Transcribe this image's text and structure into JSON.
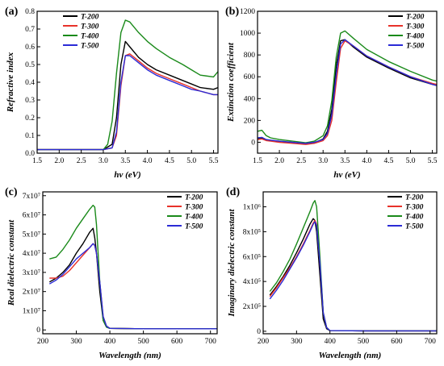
{
  "chart_data": [
    {
      "panel": "(a)",
      "type": "line",
      "xlabel": "hν (eV)",
      "ylabel": "Refractive index",
      "xlim": [
        1.5,
        5.6
      ],
      "ylim": [
        0,
        0.8
      ],
      "xticks": [
        1.5,
        2.0,
        2.5,
        3.0,
        3.5,
        4.0,
        4.5,
        5.0,
        5.5
      ],
      "xtick_labels": [
        "1.5",
        "2.0",
        "2.5",
        "3.0",
        "3.5",
        "4.0",
        "4.5",
        "5.0",
        "5.5"
      ],
      "yticks": [
        0.0,
        0.1,
        0.2,
        0.3,
        0.4,
        0.5,
        0.6,
        0.7,
        0.8
      ],
      "ytick_labels": [
        "0.0",
        "0.1",
        "0.2",
        "0.3",
        "0.4",
        "0.5",
        "0.6",
        "0.7",
        "0.8"
      ],
      "legend_position": "top-left",
      "series": [
        {
          "name": "T-200",
          "color": "#000000",
          "x": [
            1.5,
            2.0,
            2.5,
            3.0,
            3.2,
            3.3,
            3.4,
            3.5,
            3.6,
            3.8,
            4.0,
            4.2,
            4.5,
            4.8,
            5.0,
            5.2,
            5.5,
            5.6
          ],
          "y": [
            0.02,
            0.02,
            0.02,
            0.02,
            0.05,
            0.2,
            0.5,
            0.63,
            0.6,
            0.54,
            0.5,
            0.47,
            0.44,
            0.41,
            0.39,
            0.37,
            0.36,
            0.37
          ]
        },
        {
          "name": "T-300",
          "color": "#e8322a",
          "x": [
            1.5,
            2.0,
            2.5,
            3.0,
            3.2,
            3.3,
            3.4,
            3.5,
            3.6,
            3.8,
            4.0,
            4.2,
            4.5,
            4.8,
            5.0,
            5.2,
            5.5,
            5.6
          ],
          "y": [
            0.02,
            0.02,
            0.02,
            0.02,
            0.03,
            0.1,
            0.38,
            0.55,
            0.56,
            0.52,
            0.48,
            0.45,
            0.42,
            0.39,
            0.37,
            0.35,
            0.33,
            0.33
          ]
        },
        {
          "name": "T-400",
          "color": "#1a8a1a",
          "x": [
            1.5,
            2.0,
            2.5,
            3.0,
            3.1,
            3.2,
            3.3,
            3.4,
            3.5,
            3.6,
            3.8,
            4.0,
            4.2,
            4.5,
            4.8,
            5.0,
            5.2,
            5.5,
            5.6
          ],
          "y": [
            0.02,
            0.02,
            0.02,
            0.02,
            0.05,
            0.18,
            0.45,
            0.68,
            0.75,
            0.74,
            0.68,
            0.63,
            0.59,
            0.54,
            0.5,
            0.47,
            0.44,
            0.43,
            0.46
          ]
        },
        {
          "name": "T-500",
          "color": "#2b2bd6",
          "x": [
            1.5,
            2.0,
            2.5,
            3.0,
            3.2,
            3.3,
            3.4,
            3.5,
            3.6,
            3.8,
            4.0,
            4.2,
            4.5,
            4.8,
            5.0,
            5.2,
            5.5,
            5.6
          ],
          "y": [
            0.02,
            0.02,
            0.02,
            0.02,
            0.03,
            0.12,
            0.4,
            0.55,
            0.55,
            0.51,
            0.47,
            0.44,
            0.41,
            0.38,
            0.36,
            0.35,
            0.33,
            0.33
          ]
        }
      ]
    },
    {
      "panel": "(b)",
      "type": "line",
      "xlabel": "hν (eV)",
      "ylabel": "Extinction coefficient",
      "xlim": [
        1.5,
        5.6
      ],
      "ylim": [
        -100,
        1200
      ],
      "xticks": [
        1.5,
        2.0,
        2.5,
        3.0,
        3.5,
        4.0,
        4.5,
        5.0,
        5.5
      ],
      "xtick_labels": [
        "1.5",
        "2.0",
        "2.5",
        "3.0",
        "3.5",
        "4.0",
        "4.5",
        "5.0",
        "5.5"
      ],
      "yticks": [
        0,
        200,
        400,
        600,
        800,
        1000,
        1200
      ],
      "ytick_labels": [
        "0",
        "200",
        "400",
        "600",
        "800",
        "1000",
        "1200"
      ],
      "legend_position": "top-right",
      "series": [
        {
          "name": "T-200",
          "color": "#000000",
          "x": [
            1.5,
            1.6,
            1.7,
            1.8,
            2.0,
            2.3,
            2.6,
            2.8,
            3.0,
            3.1,
            3.2,
            3.3,
            3.4,
            3.5,
            3.7,
            4.0,
            4.5,
            5.0,
            5.5,
            5.6
          ],
          "y": [
            30,
            35,
            20,
            15,
            5,
            -5,
            -15,
            -5,
            30,
            100,
            300,
            700,
            930,
            940,
            870,
            780,
            680,
            590,
            530,
            520
          ]
        },
        {
          "name": "T-300",
          "color": "#e8322a",
          "x": [
            1.5,
            1.6,
            1.7,
            1.8,
            2.0,
            2.3,
            2.6,
            2.8,
            3.0,
            3.1,
            3.2,
            3.3,
            3.4,
            3.5,
            3.7,
            4.0,
            4.5,
            5.0,
            5.5,
            5.6
          ],
          "y": [
            25,
            30,
            15,
            10,
            0,
            -10,
            -20,
            -10,
            15,
            60,
            200,
            550,
            860,
            930,
            880,
            790,
            690,
            600,
            540,
            530
          ]
        },
        {
          "name": "T-400",
          "color": "#1a8a1a",
          "x": [
            1.5,
            1.6,
            1.7,
            1.8,
            2.0,
            2.3,
            2.6,
            2.8,
            3.0,
            3.1,
            3.2,
            3.3,
            3.4,
            3.5,
            3.7,
            4.0,
            4.5,
            5.0,
            5.5,
            5.6
          ],
          "y": [
            100,
            110,
            60,
            40,
            25,
            10,
            -5,
            10,
            60,
            150,
            380,
            780,
            1000,
            1020,
            950,
            850,
            740,
            650,
            570,
            560
          ]
        },
        {
          "name": "T-500",
          "color": "#2b2bd6",
          "x": [
            1.5,
            1.6,
            1.7,
            1.8,
            2.0,
            2.3,
            2.6,
            2.8,
            3.0,
            3.1,
            3.2,
            3.3,
            3.4,
            3.5,
            3.7,
            4.0,
            4.5,
            5.0,
            5.5,
            5.6
          ],
          "y": [
            40,
            45,
            25,
            20,
            10,
            0,
            -10,
            0,
            25,
            80,
            250,
            620,
            900,
            940,
            880,
            790,
            690,
            600,
            530,
            520
          ]
        }
      ]
    },
    {
      "panel": "(c)",
      "type": "line",
      "xlabel": "Wavelength (nm)",
      "ylabel": "Real dielectric constant",
      "xlim": [
        200,
        720
      ],
      "ylim": [
        -2000000,
        72000000
      ],
      "xticks": [
        200,
        300,
        400,
        500,
        600,
        700
      ],
      "xtick_labels": [
        "200",
        "300",
        "400",
        "500",
        "600",
        "700"
      ],
      "yticks": [
        0,
        10000000,
        20000000,
        30000000,
        40000000,
        50000000,
        60000000,
        70000000
      ],
      "ytick_labels": [
        "0",
        "1x10⁷",
        "2x10⁷",
        "3x10⁷",
        "4x10⁷",
        "5x10⁷",
        "6x10⁷",
        "7x10⁷"
      ],
      "legend_position": "top-right",
      "series": [
        {
          "name": "T-200",
          "color": "#000000",
          "x": [
            220,
            240,
            260,
            280,
            300,
            320,
            340,
            350,
            355,
            360,
            370,
            380,
            390,
            400,
            500,
            600,
            720
          ],
          "y": [
            25000000,
            27000000,
            30000000,
            34000000,
            40000000,
            45000000,
            51000000,
            53000000,
            48000000,
            40000000,
            20000000,
            5000000,
            1500000,
            800000,
            600000,
            600000,
            600000
          ]
        },
        {
          "name": "T-300",
          "color": "#e8322a",
          "x": [
            220,
            240,
            260,
            280,
            300,
            320,
            340,
            350,
            355,
            360,
            370,
            380,
            390,
            400,
            500,
            600,
            720
          ],
          "y": [
            27000000,
            27000000,
            28000000,
            31000000,
            35000000,
            39000000,
            43000000,
            45000000,
            44000000,
            40000000,
            25000000,
            7000000,
            2000000,
            800000,
            600000,
            600000,
            600000
          ]
        },
        {
          "name": "T-400",
          "color": "#1a8a1a",
          "x": [
            220,
            240,
            260,
            280,
            300,
            320,
            340,
            350,
            355,
            360,
            370,
            380,
            390,
            400,
            500,
            600,
            720
          ],
          "y": [
            37000000,
            38000000,
            42000000,
            47000000,
            53000000,
            58000000,
            63000000,
            65000000,
            64000000,
            55000000,
            25000000,
            5000000,
            1500000,
            800000,
            600000,
            600000,
            600000
          ]
        },
        {
          "name": "T-500",
          "color": "#2b2bd6",
          "x": [
            220,
            240,
            260,
            280,
            300,
            320,
            340,
            350,
            355,
            360,
            370,
            380,
            390,
            400,
            500,
            600,
            720
          ],
          "y": [
            24000000,
            26000000,
            29000000,
            33000000,
            37000000,
            40000000,
            43000000,
            45000000,
            44000000,
            40000000,
            25000000,
            7000000,
            2000000,
            800000,
            600000,
            600000,
            600000
          ]
        }
      ]
    },
    {
      "panel": "(d)",
      "type": "line",
      "xlabel": "Wavelength (nm)",
      "ylabel": "Imaginary dielectric constant",
      "xlim": [
        200,
        720
      ],
      "ylim": [
        -20000,
        1120000
      ],
      "xticks": [
        200,
        300,
        400,
        500,
        600,
        700
      ],
      "xtick_labels": [
        "200",
        "300",
        "400",
        "500",
        "600",
        "700"
      ],
      "yticks": [
        0,
        200000,
        400000,
        600000,
        800000,
        1000000
      ],
      "ytick_labels": [
        "0",
        "2x10⁵",
        "4x10⁵",
        "6x10⁵",
        "8x10⁵",
        "1x10⁶"
      ],
      "legend_position": "top-right",
      "series": [
        {
          "name": "T-200",
          "color": "#000000",
          "x": [
            220,
            240,
            260,
            280,
            300,
            320,
            340,
            350,
            355,
            360,
            370,
            380,
            390,
            400,
            500,
            600,
            720
          ],
          "y": [
            290000,
            360000,
            440000,
            530000,
            630000,
            740000,
            860000,
            905000,
            890000,
            800000,
            450000,
            100000,
            20000,
            5000,
            3000,
            3000,
            3000
          ]
        },
        {
          "name": "T-300",
          "color": "#e8322a",
          "x": [
            220,
            240,
            260,
            280,
            300,
            320,
            340,
            350,
            355,
            360,
            370,
            380,
            390,
            400,
            500,
            600,
            720
          ],
          "y": [
            280000,
            350000,
            430000,
            510000,
            600000,
            700000,
            810000,
            870000,
            890000,
            860000,
            550000,
            150000,
            30000,
            5000,
            3000,
            3000,
            3000
          ]
        },
        {
          "name": "T-400",
          "color": "#1a8a1a",
          "x": [
            220,
            240,
            260,
            280,
            300,
            320,
            340,
            350,
            355,
            360,
            370,
            380,
            390,
            400,
            500,
            600,
            720
          ],
          "y": [
            320000,
            390000,
            480000,
            580000,
            700000,
            830000,
            960000,
            1030000,
            1050000,
            1000000,
            600000,
            150000,
            30000,
            5000,
            3000,
            3000,
            3000
          ]
        },
        {
          "name": "T-500",
          "color": "#2b2bd6",
          "x": [
            220,
            240,
            260,
            280,
            300,
            320,
            340,
            350,
            355,
            360,
            370,
            380,
            390,
            400,
            500,
            600,
            720
          ],
          "y": [
            260000,
            330000,
            410000,
            500000,
            590000,
            690000,
            800000,
            860000,
            880000,
            850000,
            550000,
            150000,
            30000,
            5000,
            3000,
            3000,
            3000
          ]
        }
      ]
    }
  ]
}
